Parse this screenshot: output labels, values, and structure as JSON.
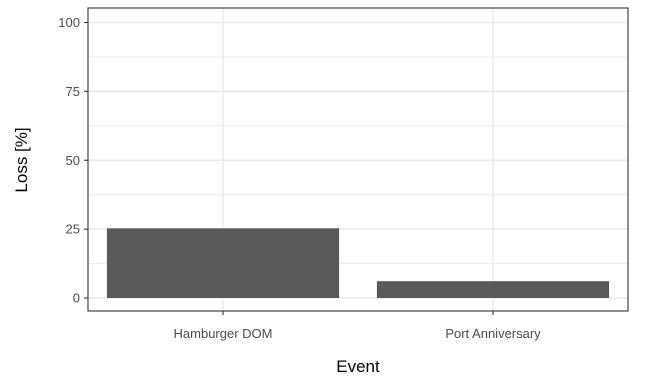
{
  "chart_data": {
    "type": "bar",
    "categories": [
      "Hamburger DOM",
      "Port Anniversary"
    ],
    "values": [
      25.3,
      6.1
    ],
    "xlabel": "Event",
    "ylabel": "Loss [%]",
    "ylim": [
      0,
      100
    ],
    "yticks": [
      0,
      25,
      50,
      75,
      100
    ],
    "grid": true,
    "bar_color": "#595959",
    "grid_color": "#ebebeb",
    "axis_color": "#333333"
  }
}
